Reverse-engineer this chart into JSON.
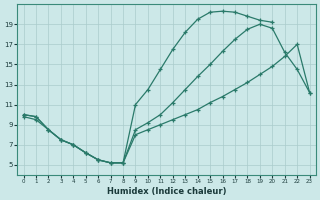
{
  "bg_color": "#cce8e8",
  "grid_color": "#aacccc",
  "line_color": "#2a7a6a",
  "xlabel": "Humidex (Indice chaleur)",
  "xlim": [
    -0.5,
    23.5
  ],
  "ylim": [
    4,
    21
  ],
  "yticks": [
    5,
    7,
    9,
    11,
    13,
    15,
    17,
    19
  ],
  "xticks": [
    0,
    1,
    2,
    3,
    4,
    5,
    6,
    7,
    8,
    9,
    10,
    11,
    12,
    13,
    14,
    15,
    16,
    17,
    18,
    19,
    20,
    21,
    22,
    23
  ],
  "curve1_x": [
    0,
    1,
    2,
    3,
    4,
    5,
    6,
    7,
    8,
    9,
    10,
    11,
    12,
    13,
    14,
    15,
    16,
    17,
    18,
    19,
    20
  ],
  "curve1_y": [
    10.0,
    9.8,
    8.5,
    7.5,
    7.0,
    6.2,
    5.5,
    5.2,
    5.2,
    11.0,
    12.5,
    14.5,
    16.5,
    18.2,
    19.5,
    20.2,
    20.3,
    20.2,
    19.8,
    19.4,
    19.2
  ],
  "curve2_x": [
    0,
    1,
    2,
    3,
    4,
    5,
    6,
    7,
    8,
    9,
    10,
    11,
    12,
    13,
    14,
    15,
    16,
    17,
    18,
    19,
    20,
    21,
    22,
    23
  ],
  "curve2_y": [
    10.0,
    9.8,
    8.5,
    7.5,
    7.0,
    6.2,
    5.5,
    5.2,
    5.2,
    8.5,
    9.2,
    10.0,
    11.2,
    12.5,
    13.8,
    15.0,
    16.3,
    17.5,
    18.5,
    19.0,
    18.6,
    16.2,
    14.5,
    12.2
  ],
  "curve3_x": [
    0,
    1,
    2,
    3,
    4,
    5,
    6,
    7,
    8,
    9,
    10,
    11,
    12,
    13,
    14,
    15,
    16,
    17,
    18,
    19,
    20,
    21,
    22,
    23
  ],
  "curve3_y": [
    9.8,
    9.5,
    8.5,
    7.5,
    7.0,
    6.2,
    5.5,
    5.2,
    5.2,
    8.0,
    8.5,
    9.0,
    9.5,
    10.0,
    10.5,
    11.2,
    11.8,
    12.5,
    13.2,
    14.0,
    14.8,
    15.8,
    17.0,
    12.2
  ]
}
